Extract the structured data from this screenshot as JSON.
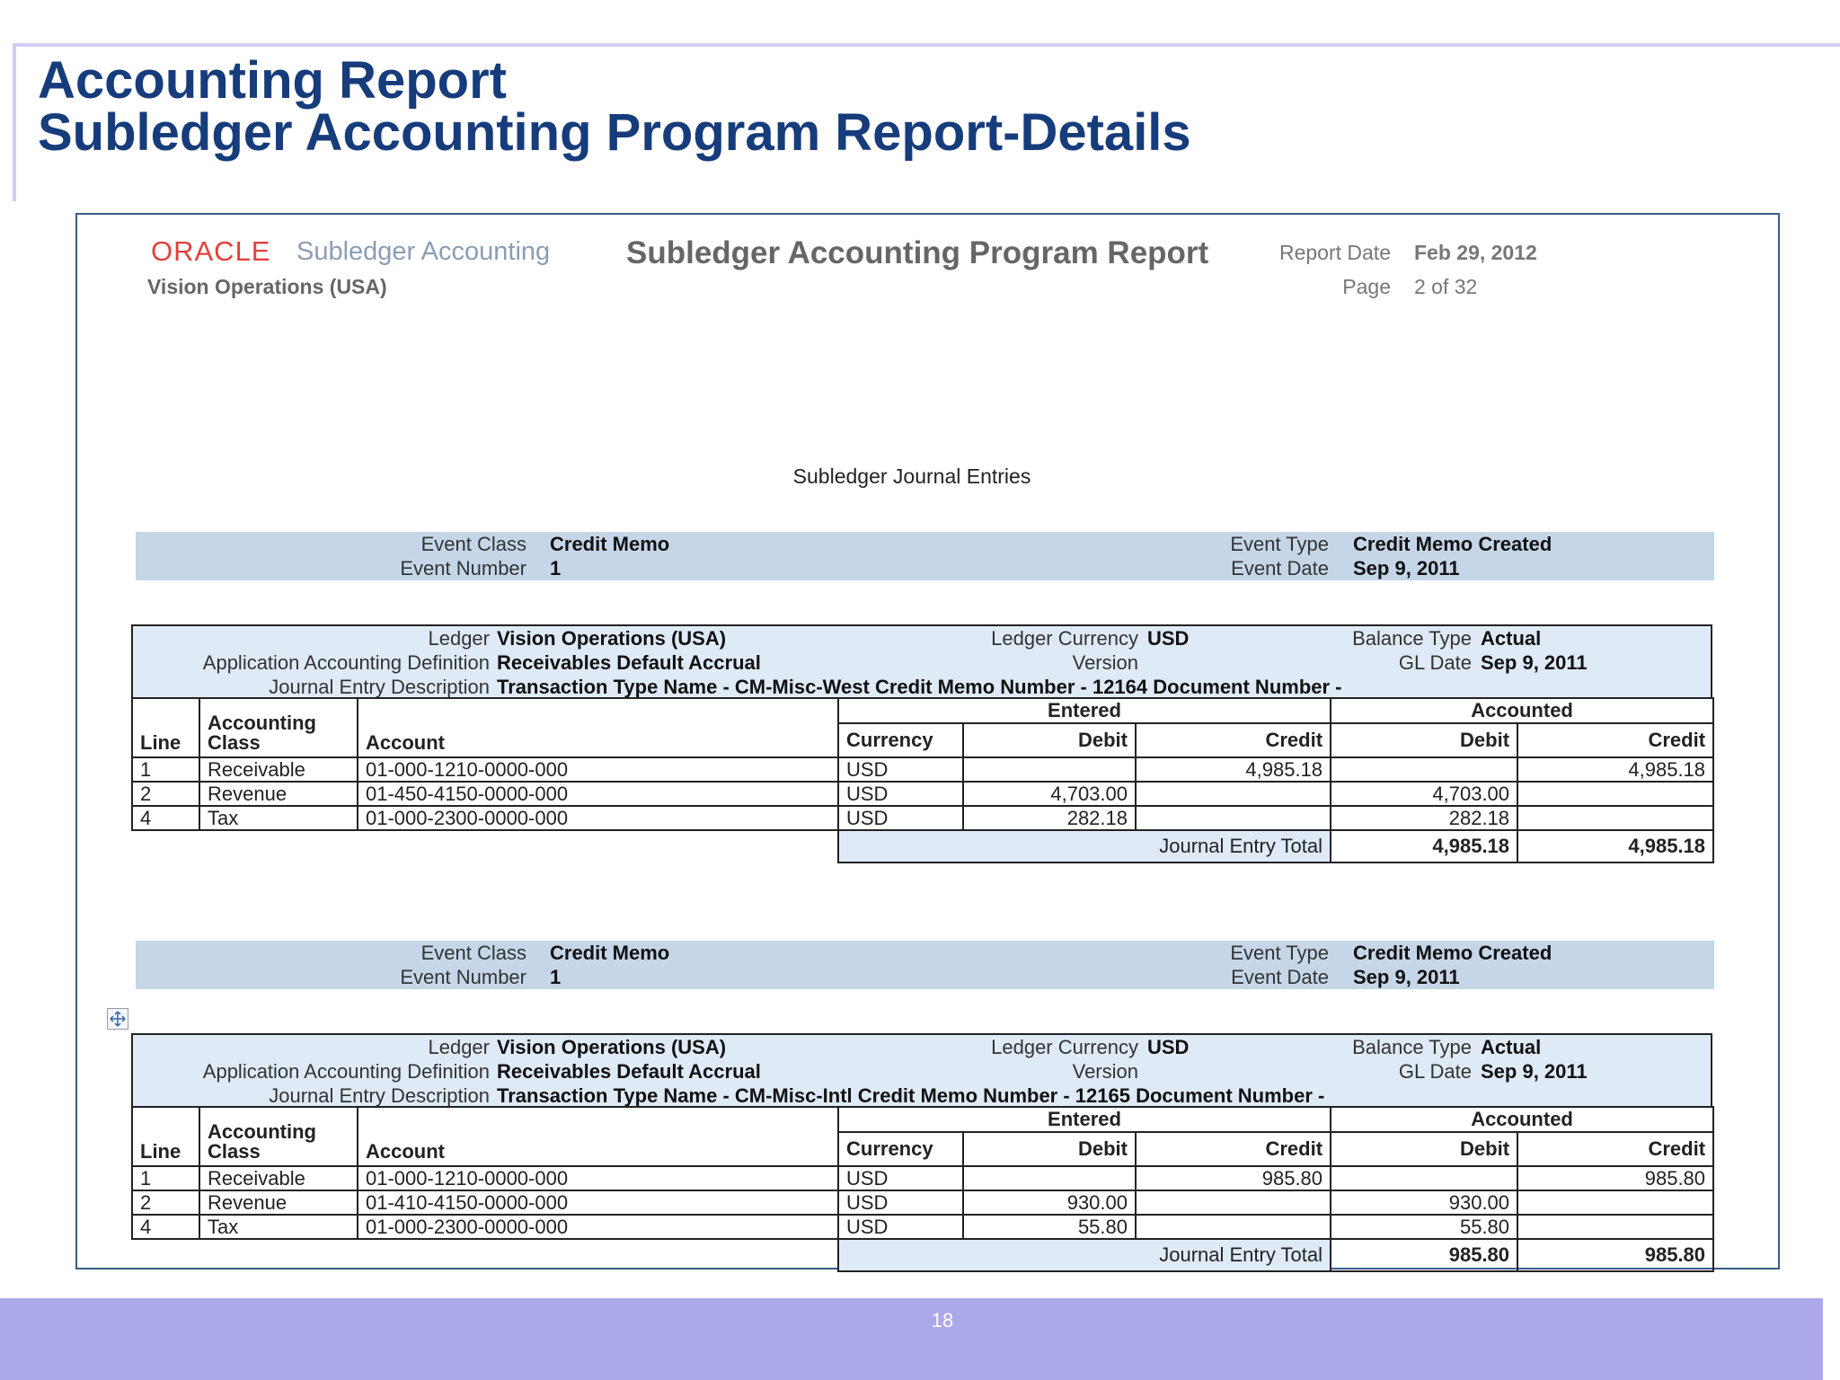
{
  "slide": {
    "title_lines": [
      "Accounting Report",
      "Subledger Accounting Program Report-Details"
    ],
    "page_number": "18"
  },
  "report": {
    "logo": "ORACLE",
    "product": "Subledger Accounting",
    "organization": "Vision Operations (USA)",
    "title": "Subledger Accounting Program Report",
    "report_date_label": "Report Date",
    "report_date": "Feb 29, 2012",
    "page_label": "Page",
    "page": "2 of 32",
    "section_title": "Subledger Journal Entries"
  },
  "entries": [
    {
      "event": {
        "left": [
          {
            "label": "Event Class",
            "value": "Credit Memo"
          },
          {
            "label": "Event Number",
            "value": "1"
          }
        ],
        "right": [
          {
            "label": "Event Type",
            "value": "Credit Memo Created"
          },
          {
            "label": "Event Date",
            "value": "Sep 9, 2011"
          }
        ]
      },
      "ledger_info": {
        "left": [
          {
            "label": "Ledger",
            "value": "Vision Operations (USA)"
          },
          {
            "label": "Application Accounting Definition",
            "value": "Receivables Default Accrual"
          },
          {
            "label": "Journal Entry Description",
            "value": "Transaction Type Name - CM-Misc-West Credit Memo Number - 12164 Document Number -"
          }
        ],
        "middle": [
          {
            "label": "Ledger Currency",
            "value": "USD"
          },
          {
            "label": "Version"
          }
        ],
        "right": [
          {
            "label": "Balance Type",
            "value": "Actual"
          },
          {
            "label": "GL Date",
            "value": "Sep 9, 2011"
          }
        ]
      },
      "groups": [
        "Entered",
        "Accounted"
      ],
      "columns": [
        "Line",
        "Accounting Class",
        "Account",
        "Currency",
        "Debit",
        "Credit",
        "Debit",
        "Credit"
      ],
      "rows": [
        {
          "line": "1",
          "class": "Receivable",
          "account": "01-000-1210-0000-000",
          "currency": "USD",
          "entered_credit": "4,985.18",
          "accounted_credit": "4,985.18"
        },
        {
          "line": "2",
          "class": "Revenue",
          "account": "01-450-4150-0000-000",
          "currency": "USD",
          "entered_debit": "4,703.00",
          "accounted_debit": "4,703.00"
        },
        {
          "line": "4",
          "class": "Tax",
          "account": "01-000-2300-0000-000",
          "currency": "USD",
          "entered_debit": "282.18",
          "accounted_debit": "282.18"
        }
      ],
      "total": {
        "label": "Journal Entry Total",
        "accounted_debit": "4,985.18",
        "accounted_credit": "4,985.18"
      }
    },
    {
      "event": {
        "left": [
          {
            "label": "Event Class",
            "value": "Credit Memo"
          },
          {
            "label": "Event Number",
            "value": "1"
          }
        ],
        "right": [
          {
            "label": "Event Type",
            "value": "Credit Memo Created"
          },
          {
            "label": "Event Date",
            "value": "Sep 9, 2011"
          }
        ]
      },
      "ledger_info": {
        "left": [
          {
            "label": "Ledger",
            "value": "Vision Operations (USA)"
          },
          {
            "label": "Application Accounting Definition",
            "value": "Receivables Default Accrual"
          },
          {
            "label": "Journal Entry Description",
            "value": "Transaction Type Name - CM-Misc-Intl Credit Memo Number - 12165 Document Number -"
          }
        ],
        "middle": [
          {
            "label": "Ledger Currency",
            "value": "USD"
          },
          {
            "label": "Version"
          }
        ],
        "right": [
          {
            "label": "Balance Type",
            "value": "Actual"
          },
          {
            "label": "GL Date",
            "value": "Sep 9, 2011"
          }
        ]
      },
      "groups": [
        "Entered",
        "Accounted"
      ],
      "columns": [
        "Line",
        "Accounting Class",
        "Account",
        "Currency",
        "Debit",
        "Credit",
        "Debit",
        "Credit"
      ],
      "rows": [
        {
          "line": "1",
          "class": "Receivable",
          "account": "01-000-1210-0000-000",
          "currency": "USD",
          "entered_credit": "985.80",
          "accounted_credit": "985.80"
        },
        {
          "line": "2",
          "class": "Revenue",
          "account": "01-410-4150-0000-000",
          "currency": "USD",
          "entered_debit": "930.00",
          "accounted_debit": "930.00"
        },
        {
          "line": "4",
          "class": "Tax",
          "account": "01-000-2300-0000-000",
          "currency": "USD",
          "entered_debit": "55.80",
          "accounted_debit": "55.80"
        }
      ],
      "total": {
        "label": "Journal Entry Total",
        "accounted_debit": "985.80",
        "accounted_credit": "985.80"
      }
    }
  ]
}
